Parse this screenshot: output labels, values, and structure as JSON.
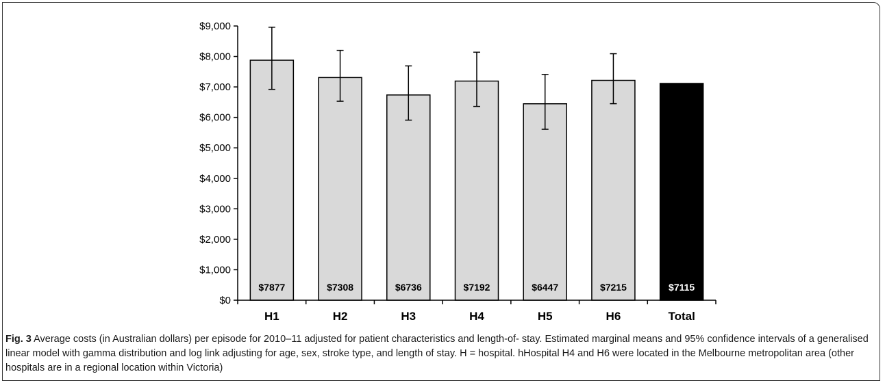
{
  "chart_data": {
    "type": "bar",
    "categories": [
      "H1",
      "H2",
      "H3",
      "H4",
      "H5",
      "H6",
      "Total"
    ],
    "values": [
      7877,
      7308,
      6736,
      7192,
      6447,
      7215,
      7115
    ],
    "value_labels": [
      "$7877",
      "$7308",
      "$6736",
      "$7192",
      "$6447",
      "$7215",
      "$7115"
    ],
    "error_low": [
      6920,
      6530,
      5910,
      6360,
      5610,
      6450,
      null
    ],
    "error_high": [
      8960,
      8200,
      7690,
      8140,
      7410,
      8090,
      null
    ],
    "ylim": [
      0,
      9000
    ],
    "yticks": [
      0,
      1000,
      2000,
      3000,
      4000,
      5000,
      6000,
      7000,
      8000,
      9000
    ],
    "ytick_labels": [
      "$0",
      "$1,000",
      "$2,000",
      "$3,000",
      "$4,000",
      "$5,000",
      "$6,000",
      "$7,000",
      "$8,000",
      "$9,000"
    ],
    "title": "",
    "xlabel": "",
    "ylabel": "",
    "grid": false,
    "bar_color": "#d9d9d9",
    "highlight_color": "#000000",
    "highlight_index": 6
  },
  "caption": {
    "label": "Fig. 3",
    "text": " Average costs (in Australian dollars) per episode for 2010–11 adjusted for patient characteristics and length-of- stay. Estimated marginal means and 95% confidence intervals of a generalised linear model with gamma distribution and log link adjusting for age, sex, stroke type, and length of stay. H = hospital. hHospital H4 and H6 were located in the Melbourne metropolitan area (other hospitals are in a regional location within Victoria)"
  }
}
